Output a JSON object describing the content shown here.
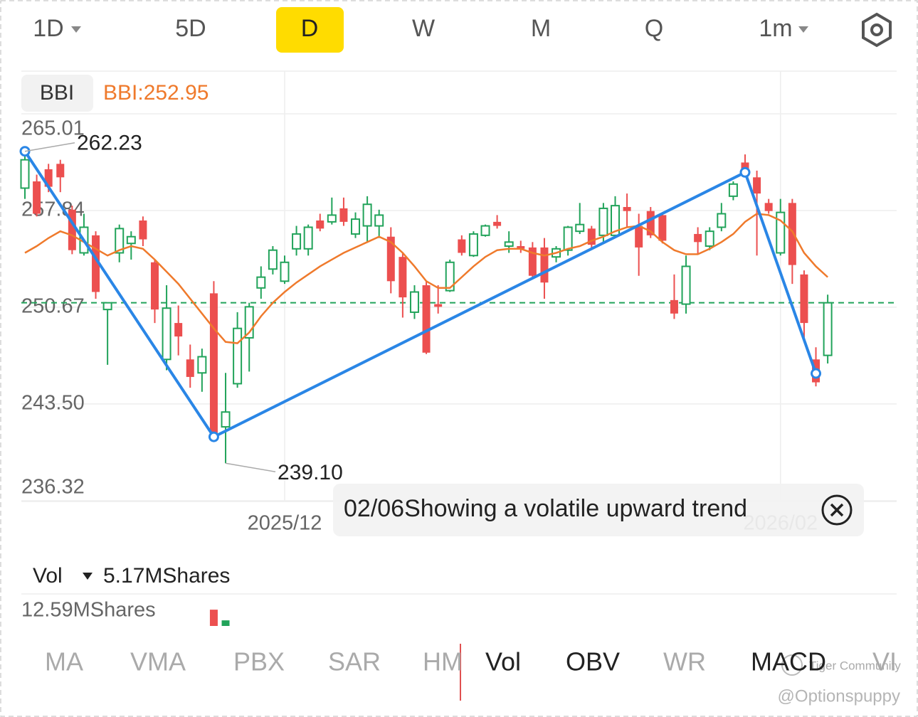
{
  "tabs": {
    "periods": [
      "1D",
      "5D",
      "D",
      "W",
      "M",
      "Q",
      "1m"
    ],
    "selected": "D"
  },
  "chart_data": {
    "type": "candlestick",
    "indicator": "BBI",
    "indicator_label": "BBI:252.95",
    "ylim": [
      236.32,
      265.01
    ],
    "yticks": [
      265.01,
      257.84,
      250.67,
      {
        "value": 243.5,
        "label": "243.50"
      },
      236.32
    ],
    "colors": {
      "up": "#21a35a",
      "down": "#ec4f4f"
    },
    "ohlc": [
      [
        259.5,
        262.23,
        258.7,
        261.6
      ],
      [
        260.0,
        260.5,
        257.4,
        257.6
      ],
      [
        260.9,
        261.3,
        259.2,
        259.6
      ],
      [
        261.3,
        261.6,
        259.2,
        260.3
      ],
      [
        257.9,
        258.2,
        254.6,
        254.9
      ],
      [
        254.7,
        257.6,
        254.5,
        256.6
      ],
      [
        256.0,
        256.3,
        251.3,
        251.8
      ],
      [
        250.5,
        251.0,
        246.4,
        251.0
      ],
      [
        254.7,
        256.8,
        254.0,
        256.5
      ],
      [
        255.4,
        256.3,
        254.2,
        255.9
      ],
      [
        257.1,
        257.4,
        255.2,
        255.7
      ],
      [
        254.0,
        254.2,
        249.5,
        250.5
      ],
      [
        246.8,
        252.3,
        246.0,
        250.6
      ],
      [
        249.5,
        250.8,
        247.1,
        248.5
      ],
      [
        246.8,
        247.9,
        244.7,
        245.5
      ],
      [
        245.8,
        247.6,
        244.4,
        247.0
      ],
      [
        251.7,
        252.6,
        241.0,
        241.3
      ],
      [
        241.8,
        245.8,
        239.1,
        242.9
      ],
      [
        245.0,
        250.3,
        244.7,
        249.1
      ],
      [
        248.4,
        251.0,
        245.9,
        250.7
      ],
      [
        252.1,
        253.7,
        251.3,
        252.9
      ],
      [
        253.5,
        255.2,
        253.1,
        254.9
      ],
      [
        252.6,
        254.5,
        252.4,
        254.0
      ],
      [
        255.0,
        256.7,
        254.5,
        256.1
      ],
      [
        255.0,
        256.8,
        254.5,
        256.6
      ],
      [
        257.1,
        257.6,
        256.3,
        256.5
      ],
      [
        257.0,
        258.8,
        256.8,
        257.5
      ],
      [
        258.0,
        258.8,
        256.7,
        257.0
      ],
      [
        256.1,
        257.7,
        255.8,
        257.2
      ],
      [
        256.7,
        258.9,
        255.5,
        258.3
      ],
      [
        256.7,
        257.9,
        255.8,
        257.5
      ],
      [
        255.9,
        256.6,
        251.7,
        252.6
      ],
      [
        254.4,
        254.7,
        249.9,
        251.4
      ],
      [
        250.3,
        252.3,
        249.8,
        251.8
      ],
      [
        252.3,
        252.6,
        247.2,
        247.3
      ],
      [
        250.9,
        252.3,
        250.2,
        250.7
      ],
      [
        251.9,
        254.2,
        251.8,
        254.0
      ],
      [
        255.7,
        256.0,
        254.5,
        254.7
      ],
      [
        254.5,
        256.3,
        254.4,
        256.1
      ],
      [
        256.0,
        256.8,
        255.9,
        256.7
      ],
      [
        257.0,
        257.5,
        256.5,
        256.7
      ],
      [
        255.2,
        256.3,
        254.7,
        255.5
      ],
      [
        255.2,
        255.6,
        254.7,
        255.0
      ],
      [
        255.1,
        255.5,
        252.8,
        253.0
      ],
      [
        255.1,
        255.8,
        251.3,
        252.5
      ],
      [
        254.4,
        255.2,
        254.0,
        255.0
      ],
      [
        254.9,
        256.7,
        254.5,
        256.6
      ],
      [
        256.3,
        258.4,
        256.1,
        256.8
      ],
      [
        256.5,
        256.7,
        255.0,
        255.3
      ],
      [
        256.0,
        258.4,
        255.5,
        258.0
      ],
      [
        256.0,
        258.9,
        255.8,
        258.2
      ],
      [
        258.1,
        259.1,
        256.6,
        257.8
      ],
      [
        256.7,
        257.6,
        253.0,
        255.1
      ],
      [
        257.8,
        258.1,
        255.8,
        256.0
      ],
      [
        257.5,
        257.7,
        255.4,
        255.6
      ],
      [
        251.2,
        253.1,
        249.8,
        250.2
      ],
      [
        250.9,
        254.5,
        250.2,
        253.7
      ],
      [
        256.1,
        256.6,
        254.6,
        255.5
      ],
      [
        255.2,
        256.6,
        254.9,
        256.3
      ],
      [
        256.6,
        258.4,
        256.3,
        257.6
      ],
      [
        258.9,
        260.0,
        258.6,
        259.8
      ],
      [
        261.4,
        262.0,
        260.5,
        260.8
      ],
      [
        260.3,
        260.8,
        254.5,
        259.1
      ],
      [
        258.4,
        258.7,
        257.6,
        257.8
      ],
      [
        254.7,
        258.7,
        254.5,
        257.7
      ],
      [
        258.4,
        258.7,
        252.4,
        253.8
      ],
      [
        253.1,
        253.4,
        248.2,
        249.5
      ],
      [
        246.8,
        247.7,
        244.8,
        245.1
      ],
      [
        247.1,
        251.6,
        246.5,
        251.0
      ]
    ],
    "bbi": {
      "color": "#ef7a2c",
      "values": [
        254.7,
        255.2,
        255.8,
        256.3,
        256.0,
        255.5,
        255.0,
        254.5,
        254.9,
        255.2,
        255.0,
        254.2,
        253.3,
        252.4,
        251.3,
        250.2,
        249.1,
        248.1,
        248.0,
        248.8,
        250.0,
        251.0,
        251.8,
        252.5,
        253.1,
        253.7,
        254.2,
        254.7,
        255.1,
        255.5,
        255.9,
        255.5,
        254.7,
        253.7,
        252.6,
        252.1,
        252.1,
        252.9,
        253.7,
        254.4,
        254.9,
        255.0,
        255.0,
        254.7,
        254.5,
        254.7,
        255.0,
        255.2,
        255.6,
        255.9,
        256.3,
        256.6,
        256.7,
        256.3,
        255.5,
        254.9,
        254.6,
        254.6,
        255.0,
        255.5,
        256.1,
        257.0,
        257.6,
        257.5,
        257.1,
        256.3,
        254.7,
        253.7,
        252.9
      ]
    },
    "zigzag": {
      "color": "#2a86e6",
      "points": [
        {
          "index": 0,
          "value": 262.23
        },
        {
          "index": 16,
          "value": 241.06
        },
        {
          "index": 61,
          "value": 260.67
        },
        {
          "index": 67,
          "value": 245.76
        }
      ]
    },
    "max_label": "262.23",
    "min_label": "239.10",
    "x_labels": [
      {
        "index": 22,
        "label": "2025/12"
      },
      {
        "index": 64,
        "label": "2026/02"
      }
    ]
  },
  "tooltip": "02/06Showing a volatile upward trend",
  "volume": {
    "label": "Vol",
    "current": "5.17MShares",
    "max": {
      "value": 12.59,
      "label": "12.59MShares"
    },
    "bars": [
      {
        "index": 16,
        "value": 6.4
      },
      {
        "index": 17,
        "value": 2.2
      }
    ]
  },
  "indicator_tabs": [
    "MA",
    "VMA",
    "PBX",
    "SAR",
    "HM",
    "Vol",
    "OBV",
    "WR",
    "MACD",
    "VI"
  ],
  "active_tabs": [
    "Vol",
    "OBV",
    "MACD"
  ],
  "watermark": [
    "Tiger Community",
    "@Optionspuppy"
  ]
}
